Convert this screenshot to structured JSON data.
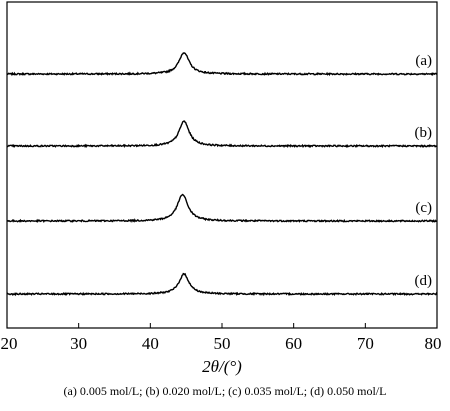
{
  "chart_data": {
    "type": "line",
    "xlabel": "2θ/(°)",
    "ylabel": "",
    "xlim": [
      20,
      80
    ],
    "x_ticks": [
      20,
      30,
      40,
      50,
      60,
      70,
      80
    ],
    "y_ticks": [],
    "grid": false,
    "legend": "none",
    "curve_labels_position": "right end of each curve",
    "series": [
      {
        "name": "(a)",
        "baseline": 0.3,
        "peaks": [
          {
            "x": 44.7,
            "height": 0.27,
            "width": 0.85
          }
        ]
      },
      {
        "name": "(b)",
        "baseline": 0.3,
        "peaks": [
          {
            "x": 44.7,
            "height": 0.31,
            "width": 0.85
          }
        ]
      },
      {
        "name": "(c)",
        "baseline": 0.3,
        "peaks": [
          {
            "x": 44.5,
            "height": 0.33,
            "width": 0.9
          }
        ]
      },
      {
        "name": "(d)",
        "baseline": 0.3,
        "peaks": [
          {
            "x": 44.7,
            "height": 0.25,
            "width": 0.85
          }
        ]
      }
    ],
    "line_color": "#000000"
  },
  "caption": "(a)  0.005  mol/L; (b) 0.020 mol/L; (c) 0.035 mol/L; (d) 0.050 mol/L"
}
